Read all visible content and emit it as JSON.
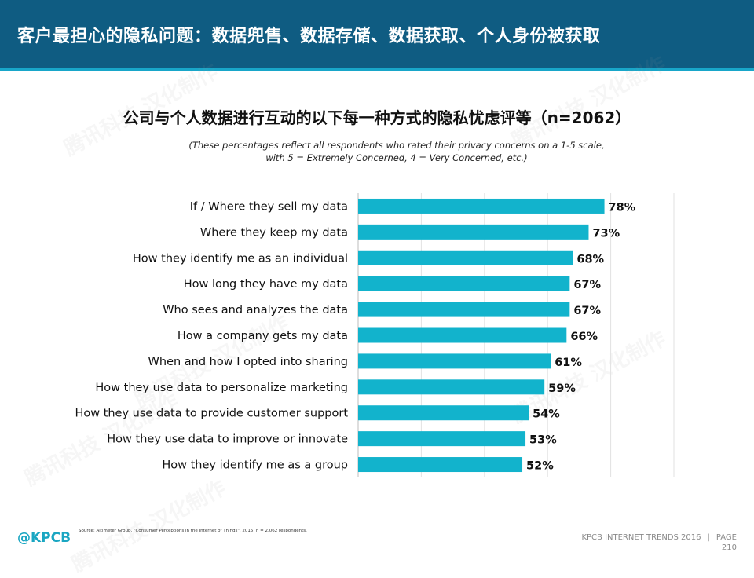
{
  "header": {
    "title": "客户最担心的隐私问题：数据兜售、数据存储、数据获取、个人身份被获取"
  },
  "chart_data": {
    "type": "bar",
    "orientation": "horizontal",
    "title": "公司与个人数据进行互动的以下每一种方式的隐私忧虑评等（n=2062）",
    "subtitle_lines": [
      "(These percentages reflect all respondents who rated their privacy concerns on a 1-5 scale,",
      "with 5 = Extremely Concerned, 4 = Very Concerned, etc.)"
    ],
    "categories": [
      "If / Where they sell my data",
      "Where they keep my data",
      "How they identify me as an individual",
      "How long they have my data",
      "Who sees and analyzes the data",
      "How a company gets my data",
      "When and how I opted into sharing",
      "How they use data to personalize marketing",
      "How they use data to provide customer support",
      "How they use data to improve or innovate",
      "How they identify me as a group"
    ],
    "values": [
      78,
      73,
      68,
      67,
      67,
      66,
      61,
      59,
      54,
      53,
      52
    ],
    "value_labels": [
      "78%",
      "73%",
      "68%",
      "67%",
      "67%",
      "66%",
      "61%",
      "59%",
      "54%",
      "53%",
      "52%"
    ],
    "xlim": [
      0,
      100
    ],
    "grid": true,
    "bar_color": "#12b3cc"
  },
  "footer": {
    "source": "Source: Altimeter Group, \"Consumer Perceptions in the Internet of Things\", 2015. n = 2,062 respondents.",
    "logo": "@KPCB",
    "report": "KPCB INTERNET TRENDS 2016",
    "divider": "|",
    "page_label": "PAGE",
    "page_number": "210"
  },
  "watermark": "腾讯科技 汉化制作"
}
